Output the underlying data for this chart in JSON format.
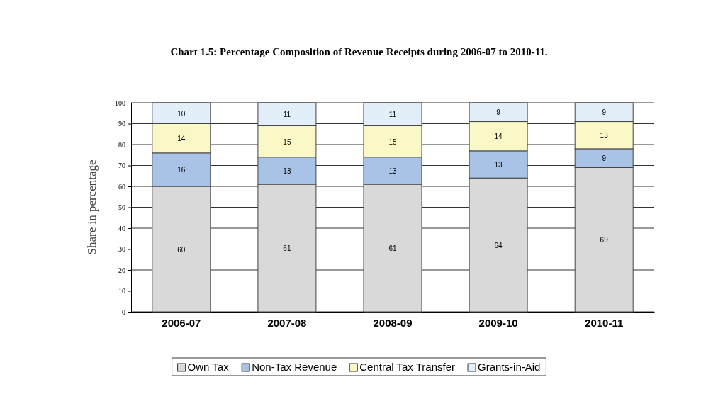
{
  "chart_data": {
    "type": "bar",
    "title": "Chart 1.5: Percentage Composition of Revenue Receipts  during 2006-07 to 2010-11.",
    "ylabel": "Share in percentage",
    "categories": [
      "2006-07",
      "2007-08",
      "2008-09",
      "2009-10",
      "2010-11"
    ],
    "stacked": true,
    "data_labels": true,
    "grid": "y",
    "legend": "bottom",
    "ylim": [
      0,
      100
    ],
    "yticks": [
      0,
      10,
      20,
      30,
      40,
      50,
      60,
      70,
      80,
      90,
      100
    ],
    "series": [
      {
        "name": "Own Tax",
        "color": "#d9d9d9",
        "values": [
          60,
          61,
          61,
          64,
          69
        ]
      },
      {
        "name": "Non-Tax Revenue",
        "color": "#a9c3e6",
        "values": [
          16,
          13,
          13,
          13,
          9
        ]
      },
      {
        "name": "Central Tax Transfer",
        "color": "#fbf8c8",
        "values": [
          14,
          15,
          15,
          14,
          13
        ]
      },
      {
        "name": "Grants-in-Aid",
        "color": "#e3eff8",
        "values": [
          10,
          11,
          11,
          9,
          9
        ]
      }
    ]
  }
}
